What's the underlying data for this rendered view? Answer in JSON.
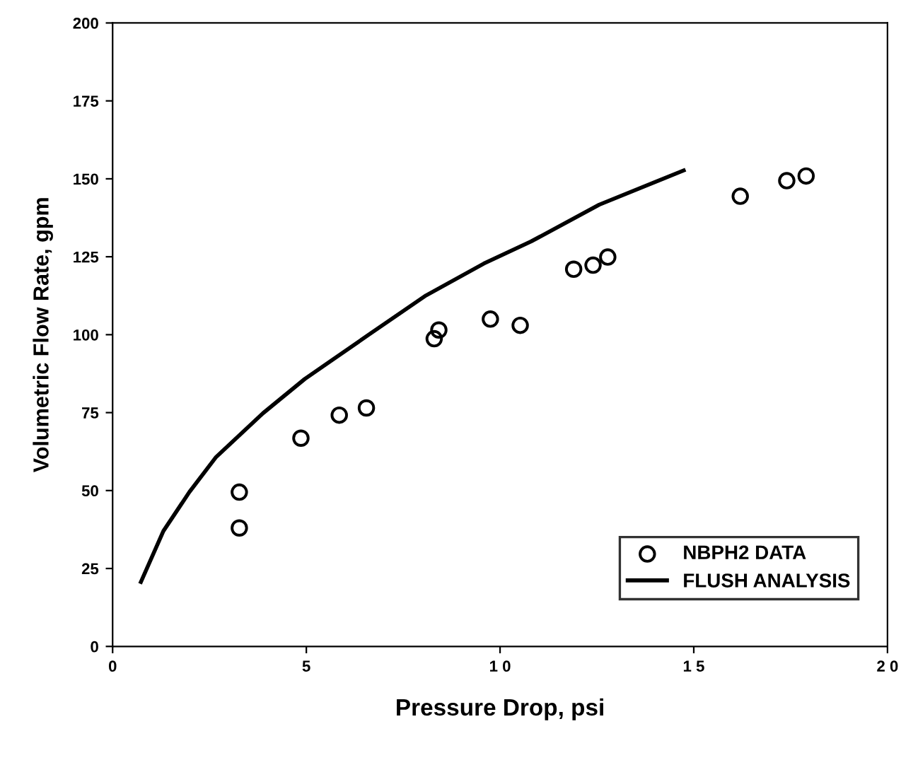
{
  "chart_data": {
    "type": "scatter",
    "xlabel": "Pressure Drop, psi",
    "ylabel": "Volumetric Flow Rate, gpm",
    "xlim": [
      0,
      20
    ],
    "ylim": [
      0,
      200
    ],
    "xticks": [
      0,
      5,
      {
        "value": 10,
        "label": "1 0"
      },
      {
        "value": 15,
        "label": "1 5"
      },
      {
        "value": 20,
        "label": "2 0"
      }
    ],
    "yticks": [
      0,
      25,
      50,
      75,
      100,
      125,
      150,
      175,
      200
    ],
    "grid": false,
    "legend": "bottom right",
    "series": [
      {
        "name": "NBPH2 DATA",
        "marker": "circle",
        "color": "#000000",
        "x": [
          3.27,
          3.27,
          4.86,
          5.85,
          6.55,
          8.3,
          8.42,
          9.75,
          10.52,
          11.9,
          12.4,
          12.78,
          16.2,
          17.4,
          17.9
        ],
        "values": [
          38,
          49.5,
          66.8,
          74.2,
          76.5,
          98.7,
          101.5,
          105,
          103,
          121,
          122.3,
          124.9,
          144.4,
          149.4,
          150.9
        ]
      },
      {
        "name": "FLUSH ANALYSIS",
        "type": "line",
        "line_style": "solid",
        "color": "#000000",
        "x": [
          0.73,
          1.31,
          1.98,
          2.66,
          3.88,
          4.96,
          6.6,
          8.09,
          9.58,
          10.8,
          12.56,
          14.74
        ],
        "values": [
          20.7,
          37,
          49.5,
          60.6,
          74.8,
          85.8,
          99.9,
          112.6,
          122.8,
          129.9,
          141.7,
          152.7
        ]
      }
    ]
  }
}
